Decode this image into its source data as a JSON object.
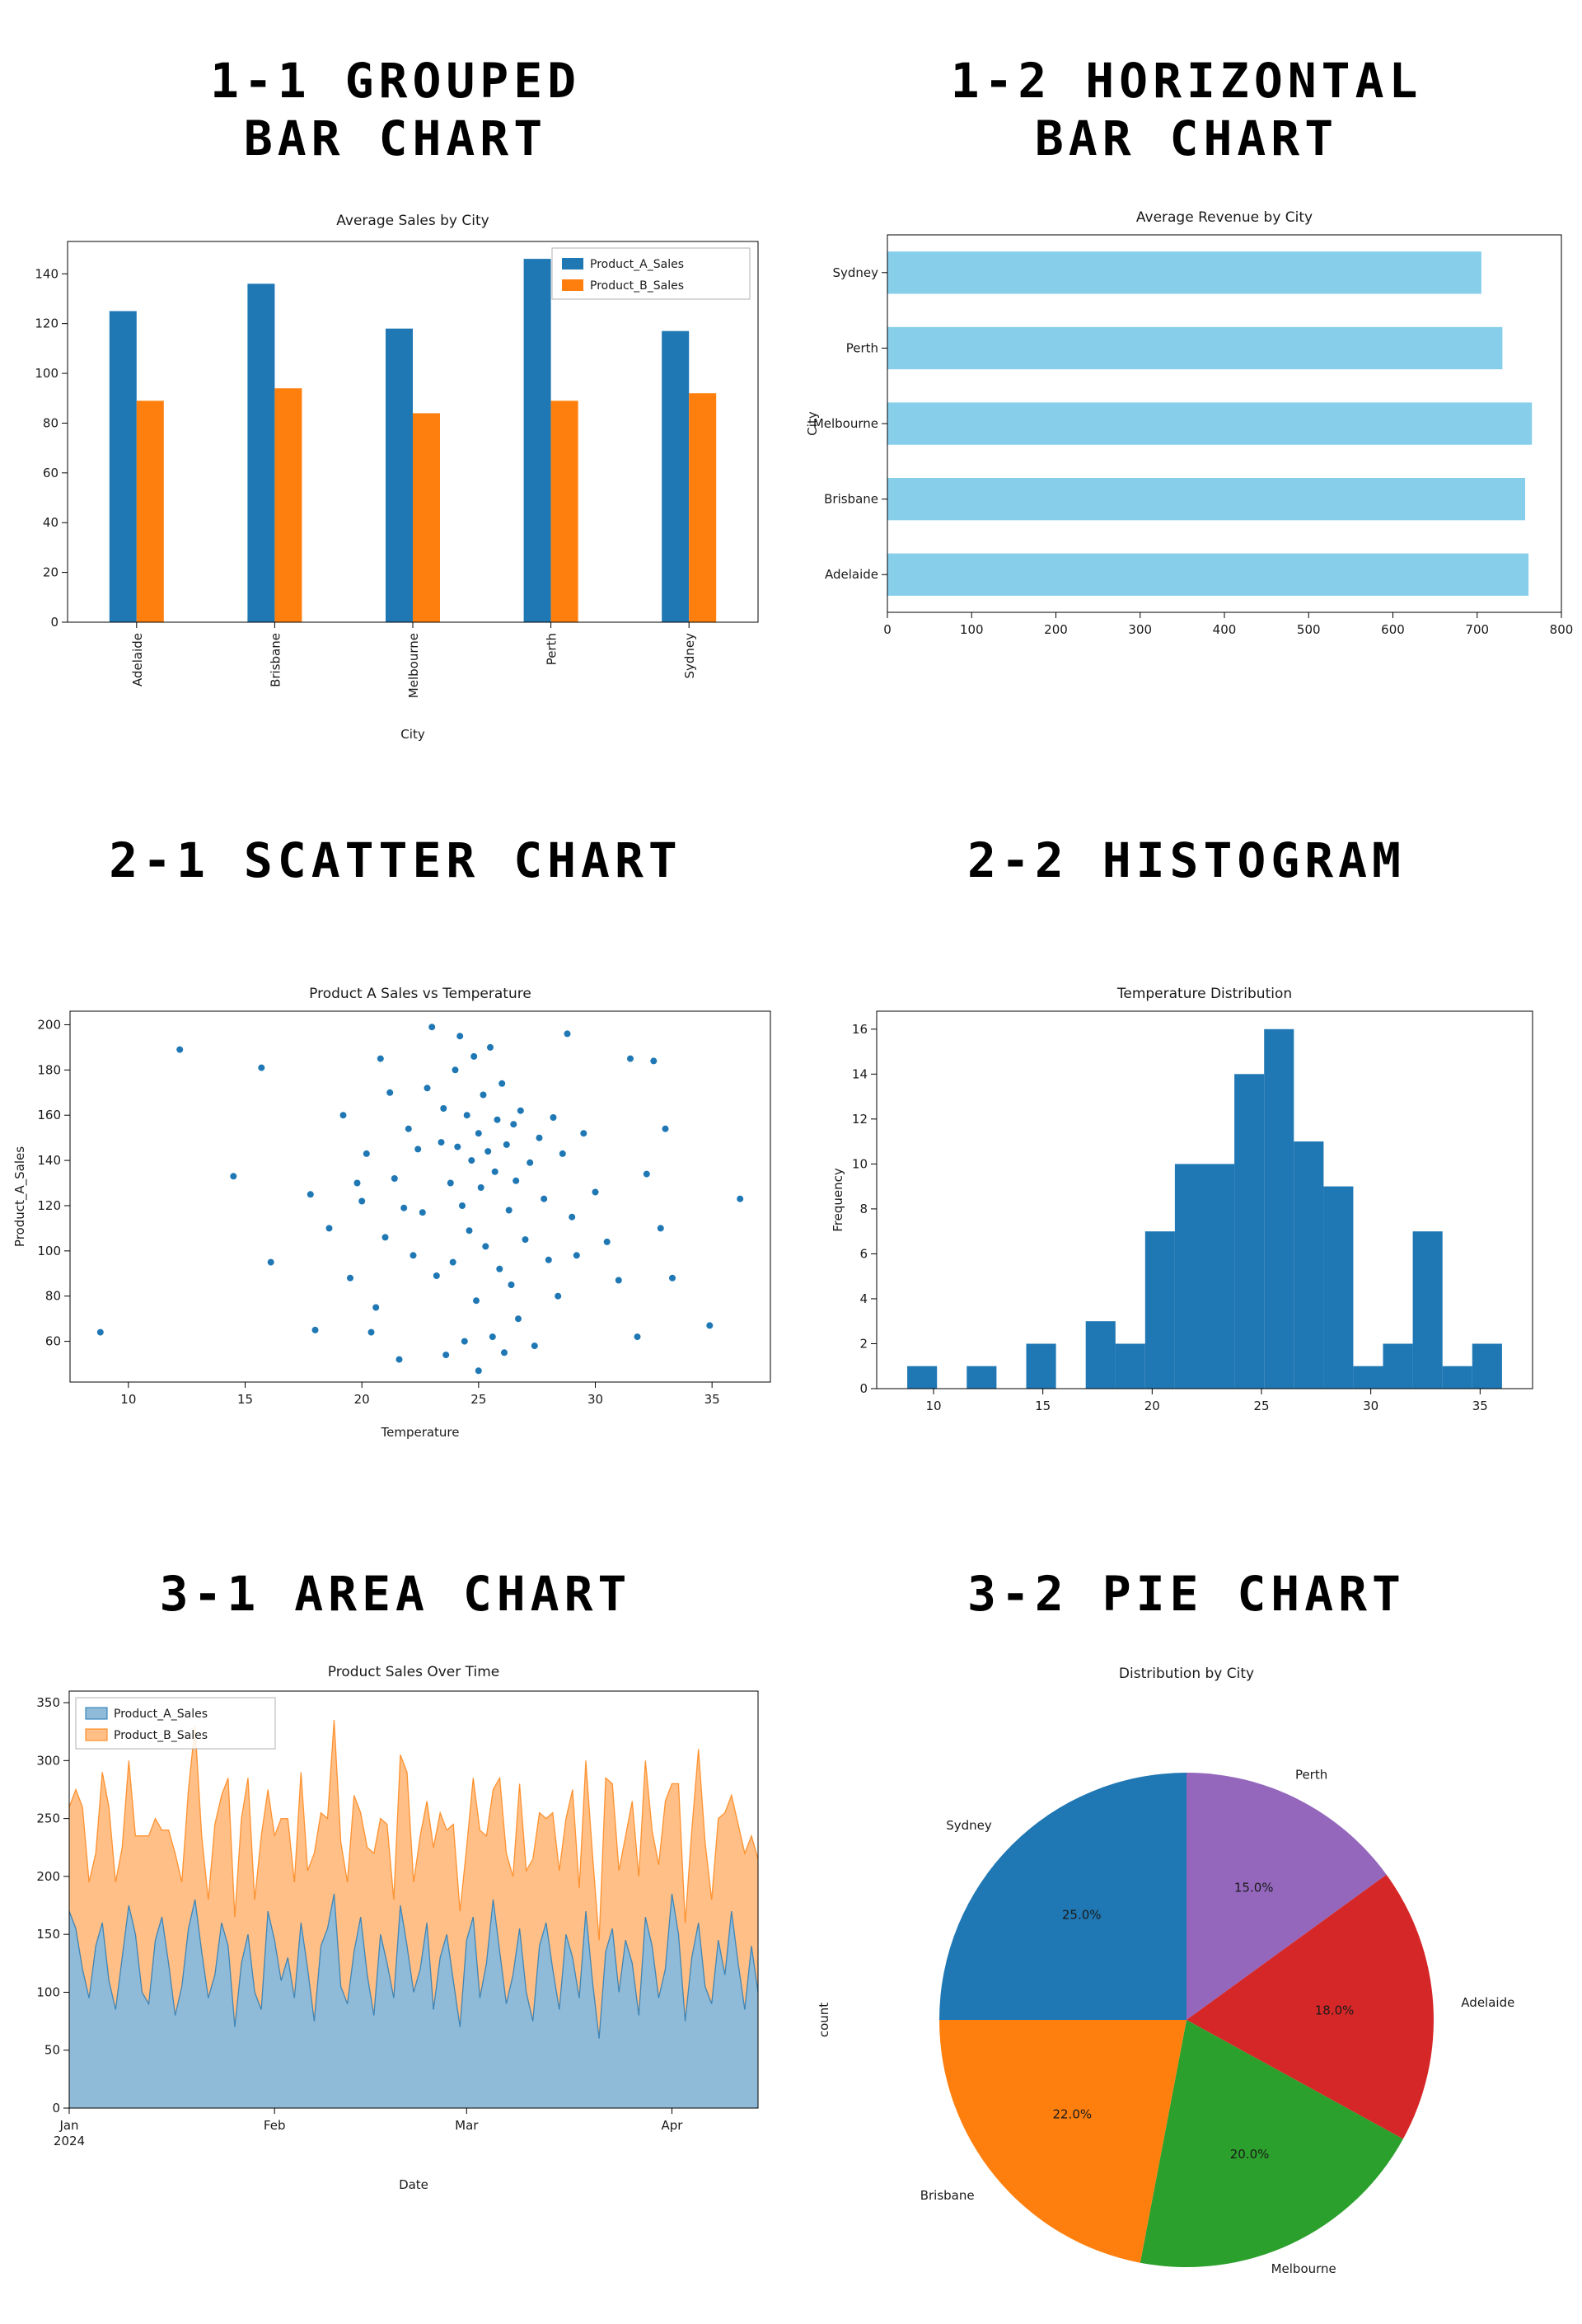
{
  "sections": [
    {
      "id": "grouped-bar",
      "lines": [
        "1-1 GROUPED",
        "BAR CHART"
      ]
    },
    {
      "id": "horizontal-bar",
      "lines": [
        "1-2 HORIZONTAL",
        "BAR CHART"
      ]
    },
    {
      "id": "scatter",
      "lines": [
        "2-1 SCATTER CHART"
      ]
    },
    {
      "id": "histogram",
      "lines": [
        "2-2 HISTOGRAM"
      ]
    },
    {
      "id": "area",
      "lines": [
        "3-1 AREA CHART"
      ]
    },
    {
      "id": "pie",
      "lines": [
        "3-2 PIE CHART"
      ]
    }
  ],
  "chart_data": [
    {
      "kind": "grouped_bar",
      "type": "bar",
      "title": "Average Sales by City",
      "xlabel": "City",
      "categories": [
        "Adelaide",
        "Brisbane",
        "Melbourne",
        "Perth",
        "Sydney"
      ],
      "series": [
        {
          "name": "Product_A_Sales",
          "color": "#1f77b4",
          "values": [
            125,
            136,
            118,
            146,
            117
          ]
        },
        {
          "name": "Product_B_Sales",
          "color": "#ff7f0e",
          "values": [
            89,
            94,
            84,
            89,
            92
          ]
        }
      ],
      "ylim": [
        0,
        153
      ],
      "yticks": [
        0,
        20,
        40,
        60,
        80,
        100,
        120,
        140
      ],
      "legend_position": "top-right",
      "grid": false
    },
    {
      "kind": "hbar",
      "type": "bar",
      "title": "Average Revenue by City",
      "ylabel": "City",
      "categories": [
        "Sydney",
        "Perth",
        "Melbourne",
        "Brisbane",
        "Adelaide"
      ],
      "values": [
        705,
        730,
        765,
        757,
        761
      ],
      "color": "#87ceeb",
      "xlim": [
        0,
        800
      ],
      "xticks": [
        0,
        100,
        200,
        300,
        400,
        500,
        600,
        700,
        800
      ],
      "grid": false
    },
    {
      "kind": "scatter",
      "type": "scatter",
      "title": "Product A Sales vs Temperature",
      "xlabel": "Temperature",
      "ylabel": "Product_A_Sales",
      "color": "#1f77b4",
      "xlim": [
        7.5,
        37.5
      ],
      "ylim": [
        42,
        206
      ],
      "xticks": [
        10,
        15,
        20,
        25,
        30,
        35
      ],
      "yticks": [
        60,
        80,
        100,
        120,
        140,
        160,
        180,
        200
      ],
      "grid": false,
      "points": [
        [
          8.8,
          64
        ],
        [
          12.2,
          189
        ],
        [
          14.5,
          133
        ],
        [
          15.7,
          181
        ],
        [
          16.1,
          95
        ],
        [
          17.8,
          125
        ],
        [
          18.0,
          65
        ],
        [
          18.6,
          110
        ],
        [
          19.2,
          160
        ],
        [
          19.5,
          88
        ],
        [
          19.8,
          130
        ],
        [
          20.0,
          122
        ],
        [
          20.2,
          143
        ],
        [
          20.4,
          64
        ],
        [
          20.6,
          75
        ],
        [
          20.8,
          185
        ],
        [
          21.0,
          106
        ],
        [
          21.2,
          170
        ],
        [
          21.4,
          132
        ],
        [
          21.6,
          52
        ],
        [
          21.8,
          119
        ],
        [
          22.0,
          154
        ],
        [
          22.2,
          98
        ],
        [
          22.4,
          145
        ],
        [
          22.6,
          117
        ],
        [
          22.8,
          172
        ],
        [
          23.0,
          199
        ],
        [
          23.2,
          89
        ],
        [
          23.4,
          148
        ],
        [
          23.5,
          163
        ],
        [
          23.6,
          54
        ],
        [
          23.8,
          130
        ],
        [
          23.9,
          95
        ],
        [
          24.0,
          180
        ],
        [
          24.1,
          146
        ],
        [
          24.2,
          195
        ],
        [
          24.3,
          120
        ],
        [
          24.4,
          60
        ],
        [
          24.5,
          160
        ],
        [
          24.6,
          109
        ],
        [
          24.7,
          140
        ],
        [
          24.8,
          186
        ],
        [
          24.9,
          78
        ],
        [
          25.0,
          152
        ],
        [
          25.0,
          47
        ],
        [
          25.1,
          128
        ],
        [
          25.2,
          169
        ],
        [
          25.3,
          102
        ],
        [
          25.4,
          144
        ],
        [
          25.5,
          190
        ],
        [
          25.6,
          62
        ],
        [
          25.7,
          135
        ],
        [
          25.8,
          158
        ],
        [
          25.9,
          92
        ],
        [
          26.0,
          174
        ],
        [
          26.1,
          55
        ],
        [
          26.2,
          147
        ],
        [
          26.3,
          118
        ],
        [
          26.4,
          85
        ],
        [
          26.5,
          156
        ],
        [
          26.6,
          131
        ],
        [
          26.7,
          70
        ],
        [
          26.8,
          162
        ],
        [
          27.0,
          105
        ],
        [
          27.2,
          139
        ],
        [
          27.4,
          58
        ],
        [
          27.6,
          150
        ],
        [
          27.8,
          123
        ],
        [
          28.0,
          96
        ],
        [
          28.2,
          159
        ],
        [
          28.4,
          80
        ],
        [
          28.6,
          143
        ],
        [
          28.8,
          196
        ],
        [
          29.0,
          115
        ],
        [
          29.2,
          98
        ],
        [
          29.5,
          152
        ],
        [
          30.0,
          126
        ],
        [
          30.5,
          104
        ],
        [
          31.0,
          87
        ],
        [
          31.5,
          185
        ],
        [
          31.8,
          62
        ],
        [
          32.2,
          134
        ],
        [
          32.5,
          184
        ],
        [
          32.8,
          110
        ],
        [
          33.0,
          154
        ],
        [
          33.3,
          88
        ],
        [
          34.9,
          67
        ],
        [
          36.2,
          123
        ]
      ]
    },
    {
      "kind": "histogram",
      "type": "bar",
      "title": "Temperature Distribution",
      "ylabel": "Frequency",
      "color": "#1f77b4",
      "bin_start": 8.8,
      "bin_width": 1.36,
      "counts": [
        1,
        0,
        1,
        0,
        2,
        0,
        3,
        2,
        7,
        10,
        10,
        14,
        16,
        11,
        9,
        1,
        2,
        7,
        1,
        2
      ],
      "xlim": [
        7.4,
        37.4
      ],
      "ylim": [
        0,
        16.8
      ],
      "xticks": [
        10,
        15,
        20,
        25,
        30,
        35
      ],
      "yticks": [
        0,
        2,
        4,
        6,
        8,
        10,
        12,
        14,
        16
      ],
      "grid": false
    },
    {
      "kind": "area",
      "type": "area",
      "title": "Product Sales Over Time",
      "xlabel": "Date",
      "legend_position": "top-left",
      "ylim": [
        0,
        360
      ],
      "yticks": [
        0,
        50,
        100,
        150,
        200,
        250,
        300,
        350
      ],
      "xticks": [
        {
          "pos": 0,
          "label": "Jan",
          "sub": "2024"
        },
        {
          "pos": 31,
          "label": "Feb"
        },
        {
          "pos": 60,
          "label": "Mar"
        },
        {
          "pos": 91,
          "label": "Apr"
        }
      ],
      "grid": false,
      "series": [
        {
          "name": "Product_A_Sales",
          "color": "#1f77b4",
          "fill": "rgba(31,119,180,0.5)",
          "values": [
            170,
            155,
            120,
            95,
            140,
            160,
            110,
            85,
            130,
            175,
            150,
            100,
            90,
            145,
            165,
            125,
            80,
            105,
            155,
            180,
            135,
            95,
            115,
            160,
            140,
            70,
            125,
            150,
            100,
            85,
            170,
            145,
            110,
            130,
            95,
            160,
            120,
            75,
            140,
            155,
            185,
            105,
            90,
            135,
            165,
            115,
            80,
            150,
            125,
            95,
            175,
            140,
            100,
            120,
            160,
            85,
            130,
            150,
            110,
            70,
            145,
            165,
            95,
            125,
            180,
            135,
            90,
            115,
            155,
            100,
            75,
            140,
            160,
            120,
            85,
            150,
            130,
            95,
            170,
            110,
            60,
            135,
            155,
            100,
            145,
            125,
            80,
            165,
            140,
            95,
            120,
            185,
            150,
            75,
            130,
            160,
            105,
            90,
            145,
            115,
            170,
            125,
            85,
            140,
            100
          ]
        },
        {
          "name": "Product_B_Sales",
          "color": "#ff7f0e",
          "fill": "rgba(255,127,14,0.5)",
          "values": [
            90,
            120,
            140,
            100,
            80,
            130,
            150,
            110,
            95,
            125,
            85,
            135,
            145,
            105,
            75,
            115,
            140,
            90,
            120,
            150,
            100,
            85,
            130,
            110,
            145,
            95,
            125,
            135,
            80,
            150,
            105,
            90,
            140,
            120,
            100,
            130,
            85,
            145,
            115,
            95,
            150,
            125,
            105,
            135,
            90,
            110,
            140,
            100,
            120,
            85,
            130,
            150,
            95,
            115,
            105,
            140,
            125,
            90,
            135,
            100,
            80,
            120,
            145,
            110,
            95,
            150,
            130,
            85,
            125,
            105,
            140,
            115,
            90,
            135,
            120,
            100,
            145,
            95,
            130,
            110,
            85,
            150,
            125,
            105,
            90,
            140,
            120,
            135,
            100,
            115,
            145,
            95,
            130,
            85,
            110,
            150,
            125,
            90,
            105,
            140,
            100,
            120,
            135,
            95,
            115
          ]
        }
      ]
    },
    {
      "kind": "pie",
      "type": "pie",
      "title": "Distribution by City",
      "ylabel": "count",
      "start_angle": 90,
      "direction": "clockwise",
      "slices": [
        {
          "label": "Perth",
          "pct": 15.0,
          "color": "#9467bd"
        },
        {
          "label": "Adelaide",
          "pct": 18.0,
          "color": "#d62728"
        },
        {
          "label": "Melbourne",
          "pct": 20.0,
          "color": "#2ca02c"
        },
        {
          "label": "Brisbane",
          "pct": 22.0,
          "color": "#ff7f0e"
        },
        {
          "label": "Sydney",
          "pct": 25.0,
          "color": "#1f77b4"
        }
      ]
    }
  ]
}
